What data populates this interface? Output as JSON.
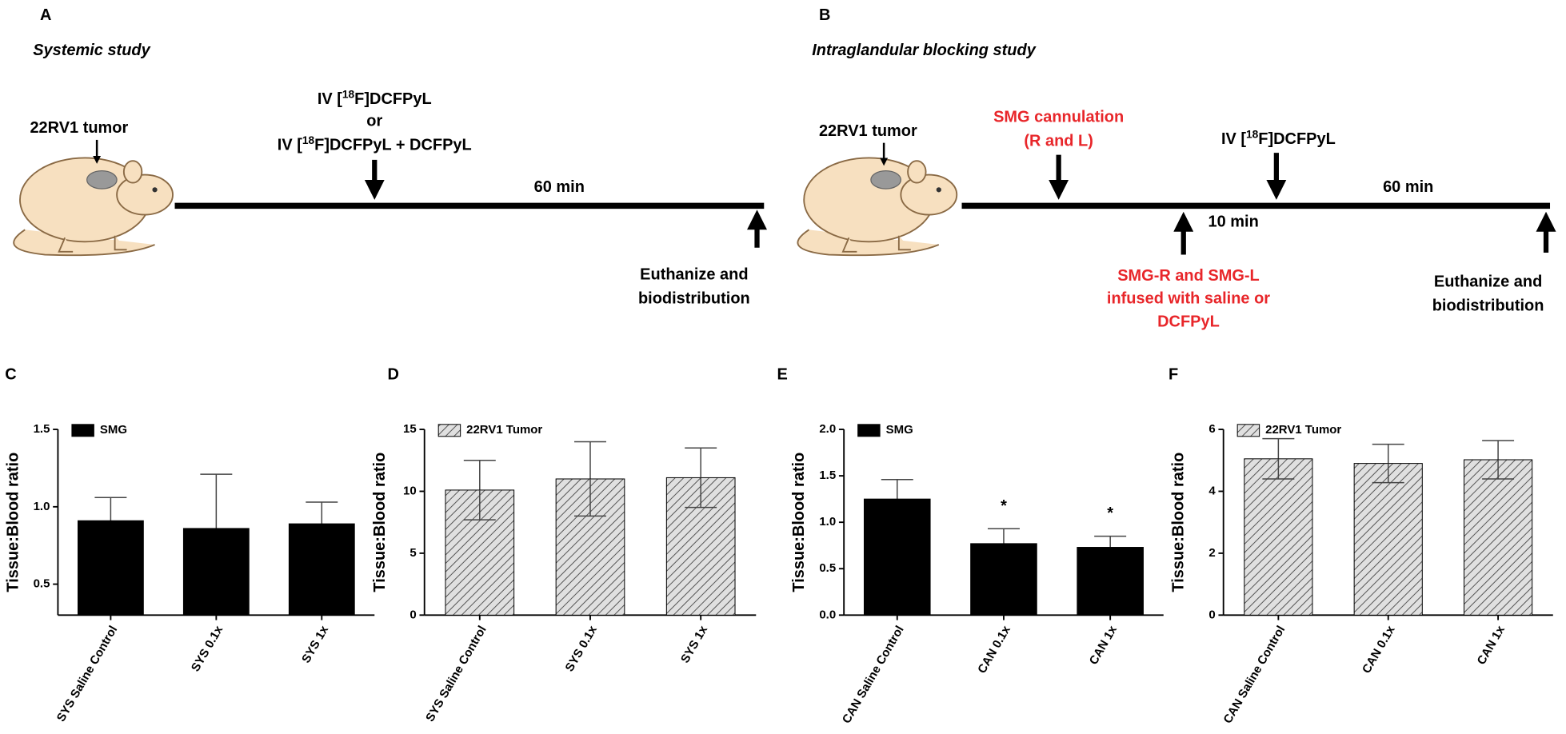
{
  "diagram_a": {
    "letter": "A",
    "title": "Systemic study",
    "tumor": "22RV1 tumor",
    "injection_1": {
      "pre": "IV [",
      "sup": "18",
      "post": "F]DCFPyL"
    },
    "or": "or",
    "injection_2": {
      "pre": "IV [",
      "sup": "18",
      "post": "F]DCFPyL + DCFPyL"
    },
    "duration": "60 min",
    "endpoint": [
      "Euthanize and",
      "biodistribution"
    ]
  },
  "diagram_b": {
    "letter": "B",
    "title": "Intraglandular blocking study",
    "tumor": "22RV1 tumor",
    "cannulation": [
      "SMG cannulation",
      "(R and L)"
    ],
    "infusion": [
      "SMG-R and SMG-L",
      "infused with saline or",
      "DCFPyL"
    ],
    "wait": "10 min",
    "injection": {
      "pre": "IV [",
      "sup": "18",
      "post": "F]DCFPyL"
    },
    "duration": "60 min",
    "endpoint": [
      "Euthanize and",
      "biodistribution"
    ]
  },
  "chart_data": [
    {
      "type": "bar",
      "panel": "C",
      "ylabel": "Tissue:Blood ratio",
      "legend": "SMG",
      "color": "#000000",
      "hatch": false,
      "categories": [
        "SYS Saline Control",
        "SYS 0.1x",
        "SYS 1x"
      ],
      "values": [
        0.91,
        0.86,
        0.89
      ],
      "errors": [
        0.15,
        0.35,
        0.14
      ],
      "ylim": [
        0.3,
        1.5
      ],
      "yticks": [
        {
          "value": 0.5,
          "label": "0.5"
        },
        {
          "value": 1,
          "label": "1.0"
        },
        {
          "value": 1.5,
          "label": "1.5"
        }
      ]
    },
    {
      "type": "bar",
      "panel": "D",
      "ylabel": "Tissue:Blood ratio",
      "legend": "22RV1 Tumor",
      "color": "#d9d9d9",
      "hatch": true,
      "categories": [
        "SYS Saline Control",
        "SYS 0.1x",
        "SYS 1x"
      ],
      "values": [
        10.1,
        11.0,
        11.1
      ],
      "errors": [
        2.4,
        3.0,
        2.4
      ],
      "ylim": [
        0,
        15
      ],
      "yticks": [
        0,
        5,
        10,
        15
      ]
    },
    {
      "type": "bar",
      "panel": "E",
      "ylabel": "Tissue:Blood ratio",
      "legend": "SMG",
      "color": "#000000",
      "hatch": false,
      "categories": [
        "CAN Saline Control",
        "CAN 0.1x",
        "CAN 1x"
      ],
      "values": [
        1.25,
        0.77,
        0.73
      ],
      "errors": [
        0.21,
        0.16,
        0.12
      ],
      "significance": [
        null,
        "*",
        "*"
      ],
      "ylim": [
        0,
        2
      ],
      "yticks": [
        {
          "value": 0,
          "label": "0.0"
        },
        {
          "value": 0.5,
          "label": "0.5"
        },
        {
          "value": 1,
          "label": "1.0"
        },
        {
          "value": 1.5,
          "label": "1.5"
        },
        {
          "value": 2,
          "label": "2.0"
        }
      ]
    },
    {
      "type": "bar",
      "panel": "F",
      "ylabel": "Tissue:Blood ratio",
      "legend": "22RV1 Tumor",
      "color": "#d9d9d9",
      "hatch": true,
      "categories": [
        "CAN Saline Control",
        "CAN 0.1x",
        "CAN 1x"
      ],
      "values": [
        5.05,
        4.9,
        5.02
      ],
      "errors": [
        0.65,
        0.62,
        0.62
      ],
      "ylim": [
        0,
        6
      ],
      "yticks": [
        0,
        2,
        4,
        6
      ]
    }
  ]
}
